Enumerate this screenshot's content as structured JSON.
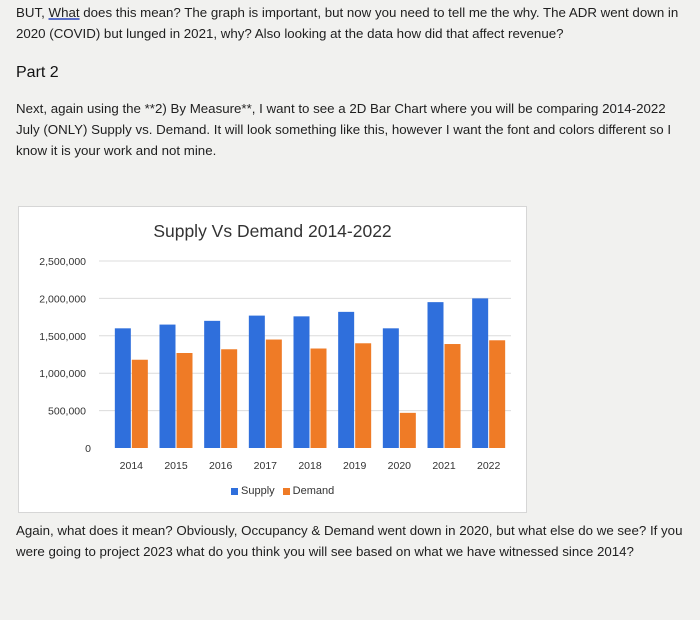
{
  "text": {
    "p1_start": "BUT, ",
    "p1_underlined": "What",
    "p1_rest": " does this mean? The graph is important, but now you need to tell me the why. The ADR went down in 2020 (COVID) but lunged in 2021, why? Also looking at the data how did that affect revenue?",
    "part_heading": "Part 2",
    "p2": "Next, again using the **2) By Measure**, I want to see a 2D Bar Chart where you will be comparing 2014-2022 July (ONLY) Supply vs. Demand. It will look something like this, however I want the font and colors different so I know it is your work and not mine.",
    "p3": "Again, what does it mean? Obviously, Occupancy & Demand went down in 2020, but what else do we see? If you were going to project 2023 what do you think you will see based on what we have witnessed since 2014?"
  },
  "colors": {
    "supply": "#2f6fdc",
    "demand": "#ef7b26",
    "grid": "#dcdcdc"
  },
  "chart_data": {
    "type": "bar",
    "title": "Supply Vs Demand 2014-2022",
    "categories": [
      "2014",
      "2015",
      "2016",
      "2017",
      "2018",
      "2019",
      "2020",
      "2021",
      "2022"
    ],
    "series": [
      {
        "name": "Supply",
        "values": [
          1600000,
          1650000,
          1700000,
          1770000,
          1760000,
          1820000,
          1600000,
          1950000,
          2000000
        ]
      },
      {
        "name": "Demand",
        "values": [
          1180000,
          1270000,
          1320000,
          1450000,
          1330000,
          1400000,
          470000,
          1390000,
          1440000
        ]
      }
    ],
    "yticks": [
      "0",
      "500,000",
      "1,000,000",
      "1,500,000",
      "2,000,000",
      "2,500,000"
    ],
    "ylim": [
      0,
      2500000
    ],
    "xlabel": "",
    "ylabel": "",
    "legend": "bottom"
  }
}
